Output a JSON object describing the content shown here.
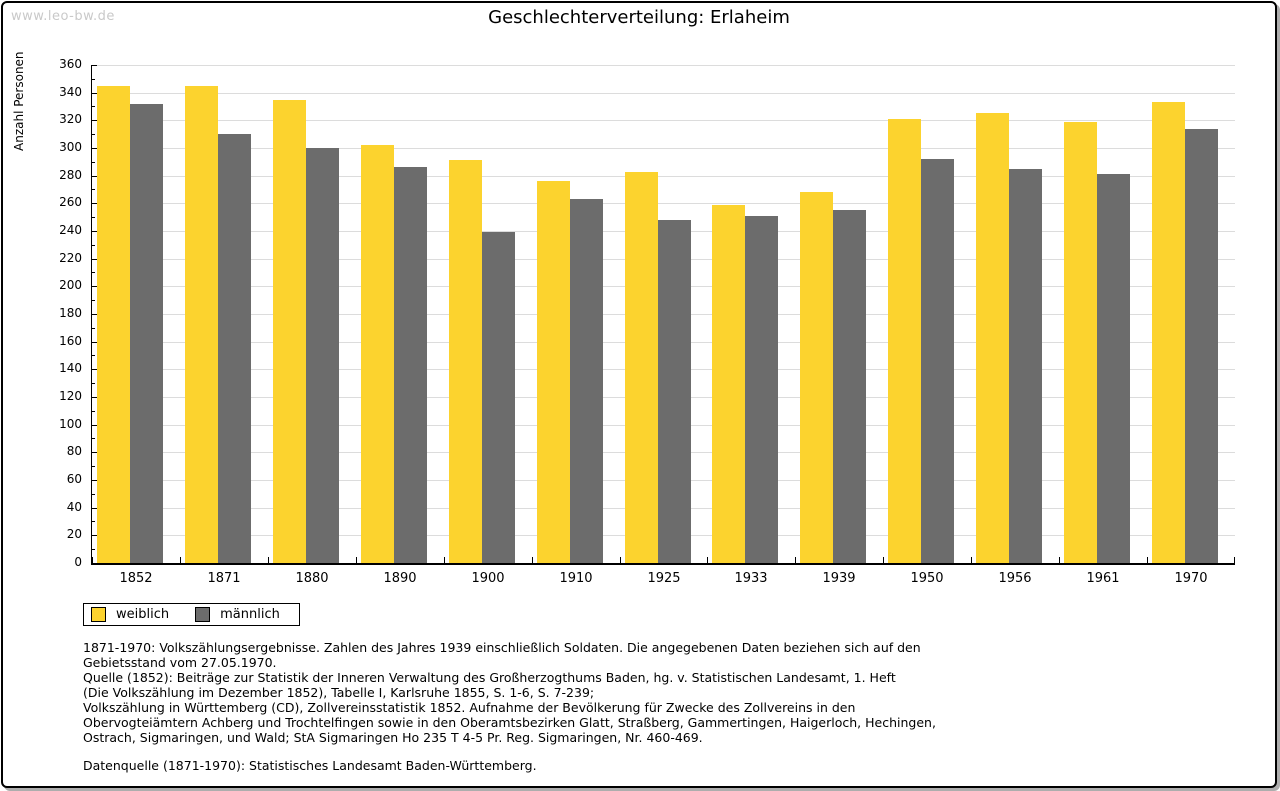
{
  "watermark": "www.leo-bw.de",
  "chart_data": {
    "type": "bar",
    "title": "Geschlechterverteilung: Erlaheim",
    "xlabel": "",
    "ylabel": "Anzahl Personen",
    "ylim": [
      0,
      360
    ],
    "ytick_step": 20,
    "yminor_step": 10,
    "grid": true,
    "legend_position": "bottom-left",
    "categories": [
      "1852",
      "1871",
      "1880",
      "1890",
      "1900",
      "1910",
      "1925",
      "1933",
      "1939",
      "1950",
      "1956",
      "1961",
      "1970"
    ],
    "series": [
      {
        "name": "weiblich",
        "color": "#FCD32E",
        "values": [
          345,
          345,
          335,
          302,
          291,
          276,
          283,
          259,
          268,
          321,
          325,
          319,
          333
        ]
      },
      {
        "name": "männlich",
        "color": "#6C6C6C",
        "values": [
          332,
          310,
          300,
          286,
          239,
          263,
          248,
          251,
          255,
          292,
          285,
          281,
          314
        ]
      }
    ]
  },
  "footnotes": {
    "sources": "1871-1970: Volkszählungsergebnisse. Zahlen des Jahres 1939 einschließlich Soldaten. Die angegebenen Daten beziehen sich auf den\nGebietsstand vom 27.05.1970.\nQuelle (1852): Beiträge zur Statistik der Inneren Verwaltung des Großherzogthums Baden, hg. v. Statistischen Landesamt, 1. Heft\n(Die Volkszählung im Dezember 1852), Tabelle I, Karlsruhe 1855, S. 1-6, S. 7-239;\nVolkszählung in Württemberg (CD), Zollvereinsstatistik 1852. Aufnahme der Bevölkerung für Zwecke des Zollvereins in den\nObervogteiämtern Achberg und Trochtelfingen sowie in den Oberamtsbezirken Glatt, Straßberg, Gammertingen, Haigerloch, Hechingen,\nOstrach, Sigmaringen, und Wald; StA Sigmaringen Ho 235 T 4-5 Pr. Reg. Sigmaringen, Nr. 460-469.",
    "datasource": "Datenquelle (1871-1970): Statistisches Landesamt Baden-Württemberg."
  },
  "colors": {
    "weiblich": "#FCD32E",
    "maennlich": "#6C6C6C",
    "gridline": "#DCDCDC",
    "watermark": "#C9C9C9",
    "frame_border": "#000000",
    "frame_shadow": "#ADADAD"
  }
}
